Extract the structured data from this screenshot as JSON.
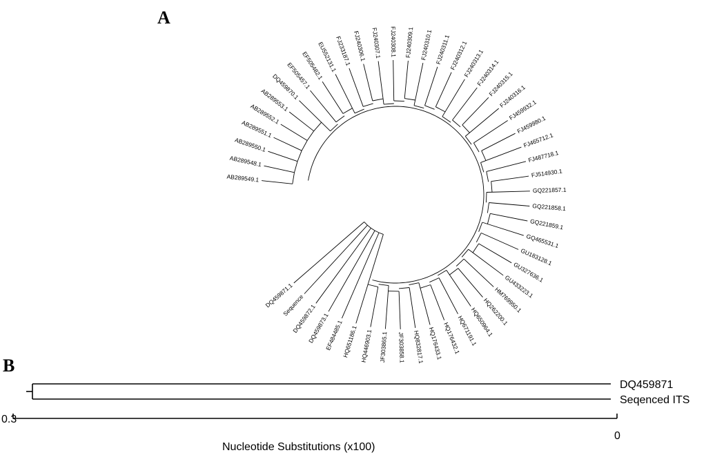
{
  "panel_a": {
    "label": "A",
    "leaves": [
      "AB289549.1",
      "AB289548.1",
      "AB289550.1",
      "AB289551.1",
      "AB289552.1",
      "AB289553.1",
      "DQ459870.1",
      "EF505457.1",
      "EF505482.1",
      "EU552131.1",
      "FJ233187.1",
      "FJ240306.1",
      "FJ240307.1",
      "FJ240308.1",
      "FJ240309.1",
      "FJ240310.1",
      "FJ240311.1",
      "FJ240312.1",
      "FJ240313.1",
      "FJ240314.1",
      "FJ240315.1",
      "FJ240316.1",
      "FJ459932.1",
      "FJ459980.1",
      "FJ465712.1",
      "FJ487718.1",
      "FJ514930.1",
      "GQ221857.1",
      "GQ221858.1",
      "GQ221859.1",
      "GQ465531.1",
      "GU183128.1",
      "GU327636.1",
      "GU433223.1",
      "HM769950.1",
      "HQ262200.1",
      "HQ650964.1",
      "HQ671191.1",
      "HQ176432.1",
      "HQ176433.1",
      "HQ832817.1",
      "JF303858.1",
      "JF303865.1",
      "HQ446903.1",
      "HQ651186.1",
      "EF484485.1",
      "DQ459873.1",
      "DQ459872.1",
      "Sequence",
      "DQ459871.1"
    ]
  },
  "panel_b": {
    "label": "B",
    "tips": [
      "DQ459871",
      "Seqenced ITS"
    ],
    "scale": {
      "left_label": "0.3",
      "right_label": "0",
      "axis_title": "Nucleotide Substitutions (x100)"
    }
  }
}
